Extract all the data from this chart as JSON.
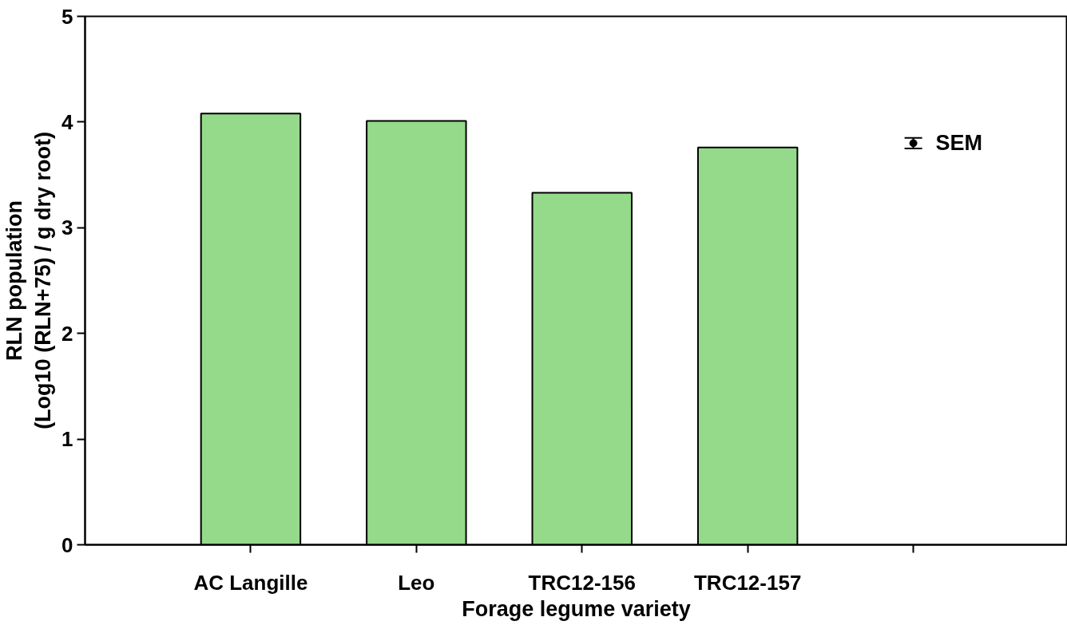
{
  "chart_data": {
    "type": "bar",
    "xlabel": "Forage legume variety",
    "ylabel": "RLN population\n(Log10 (RLN+75) / g dry root)",
    "categories": [
      "AC Langille",
      "Leo",
      "TRC12-156",
      "TRC12-157",
      null
    ],
    "ylim": [
      0,
      5
    ],
    "yticks": [
      0,
      1,
      2,
      3,
      4,
      5
    ],
    "series": [
      {
        "color": "#95d98b",
        "values": [
          4.08,
          4.01,
          3.33,
          3.76,
          null
        ]
      },
      {
        "type": "scatter",
        "name": "SEM",
        "color": "#000000",
        "marker": "circle",
        "values": [
          null,
          null,
          null,
          null,
          3.8
        ],
        "errors": [
          null,
          null,
          null,
          null,
          0.05
        ]
      }
    ]
  }
}
